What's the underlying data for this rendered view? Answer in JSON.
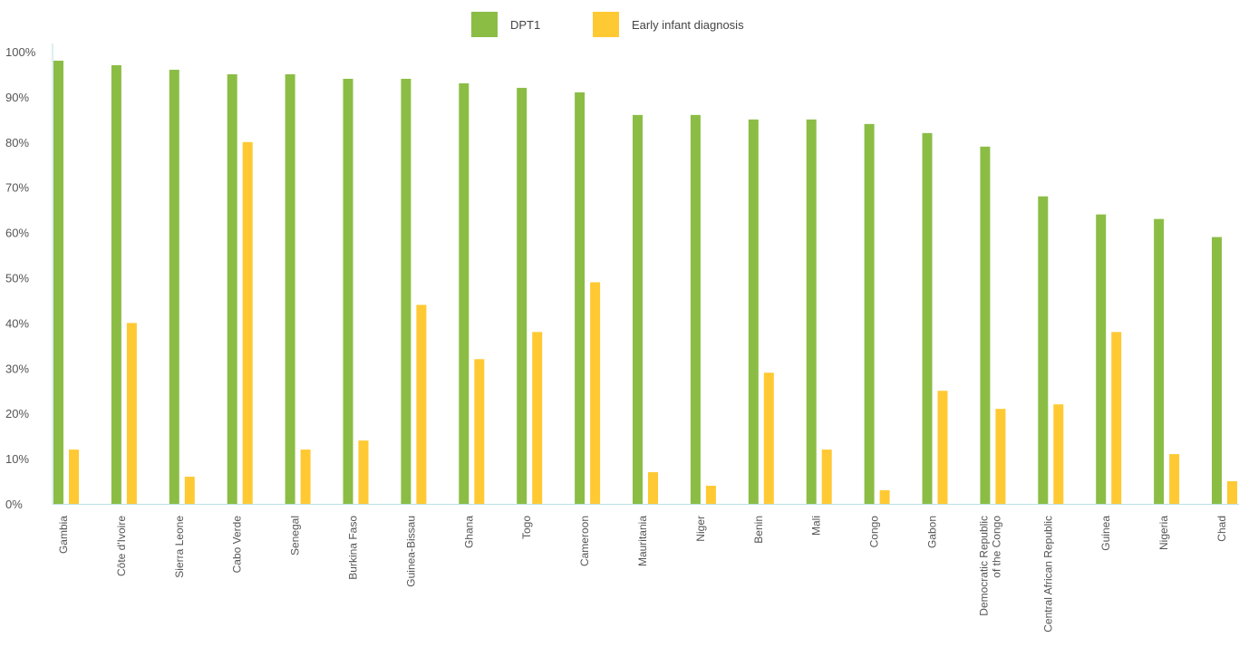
{
  "chart_data": {
    "type": "bar",
    "categories": [
      [
        "Gambia"
      ],
      [
        "Côte d'Ivoire"
      ],
      [
        "Sierra Leone"
      ],
      [
        "Cabo Verde"
      ],
      [
        "Senegal"
      ],
      [
        "Burkina Faso"
      ],
      [
        "Guinea-Bissau"
      ],
      [
        "Ghana"
      ],
      [
        "Togo"
      ],
      [
        "Cameroon"
      ],
      [
        "Mauritania"
      ],
      [
        "Niger"
      ],
      [
        "Benin"
      ],
      [
        "Mali"
      ],
      [
        "Congo"
      ],
      [
        "Gabon"
      ],
      [
        "Democratic Republic",
        "of the Congo"
      ],
      [
        "Central African Republic"
      ],
      [
        "Guinea"
      ],
      [
        "Nigeria"
      ],
      [
        "Chad"
      ]
    ],
    "series": [
      {
        "name": "DPT1",
        "color": "#8bbd45",
        "values": [
          98,
          97,
          96,
          95,
          95,
          94,
          94,
          93,
          92,
          91,
          86,
          86,
          85,
          85,
          84,
          82,
          79,
          68,
          64,
          63,
          59
        ]
      },
      {
        "name": "Early infant diagnosis",
        "color": "#ffc933",
        "values": [
          12,
          40,
          6,
          80,
          12,
          14,
          44,
          32,
          38,
          49,
          7,
          4,
          29,
          12,
          3,
          25,
          21,
          22,
          38,
          11,
          5
        ]
      }
    ],
    "ylim": [
      0,
      100
    ],
    "yticks": [
      "0%",
      "10%",
      "20%",
      "30%",
      "40%",
      "50%",
      "60%",
      "70%",
      "80%",
      "90%",
      "100%"
    ],
    "legend_position": "top-center",
    "grid": false
  }
}
